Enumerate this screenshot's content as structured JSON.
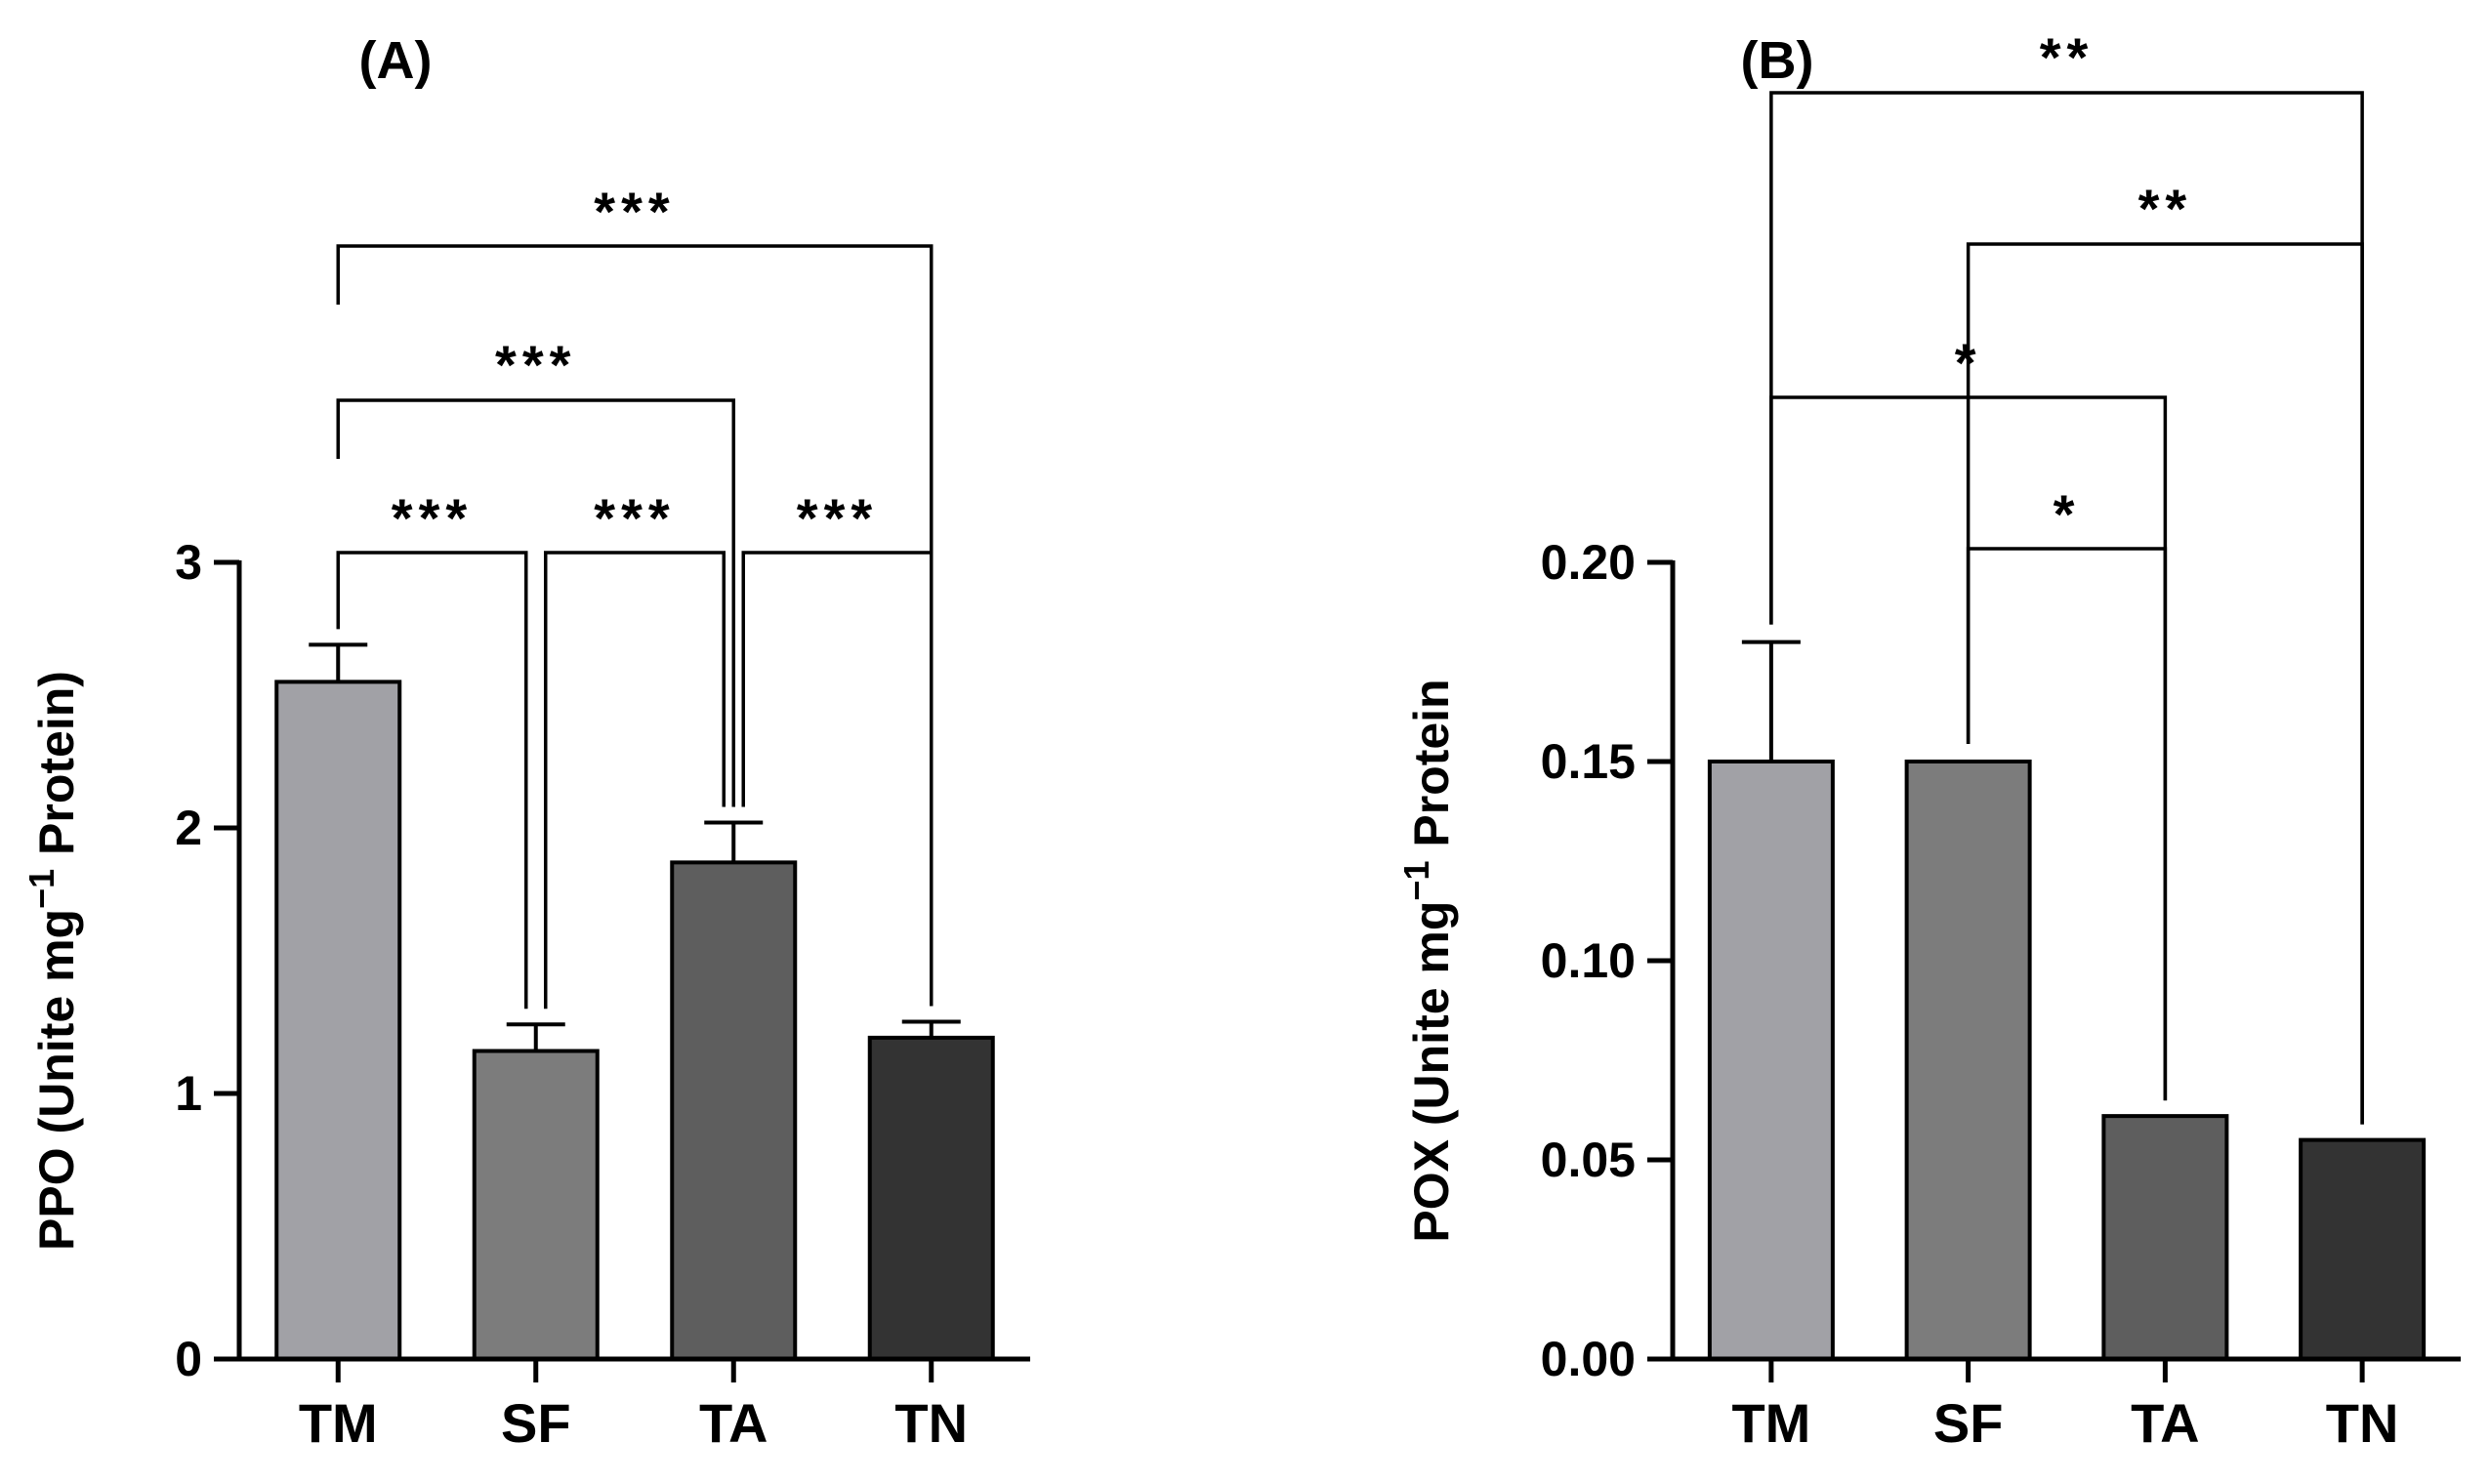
{
  "chart_data": [
    {
      "panel_label": "(A)",
      "type": "bar",
      "categories": [
        "TM",
        "SF",
        "TA",
        "TN"
      ],
      "values": [
        2.55,
        1.16,
        1.87,
        1.21
      ],
      "errors": [
        0.14,
        0.1,
        0.15,
        0.06
      ],
      "colors": [
        "#a1a1a6",
        "#7c7c7c",
        "#5e5e5e",
        "#333333"
      ],
      "ylabel_main": "PPO (Unite mg",
      "ylabel_sup": "−1",
      "ylabel_end": " Protein)",
      "ylim": [
        0,
        3
      ],
      "yticks": [
        0,
        1,
        2,
        3
      ],
      "ytick_labels": [
        "0",
        "1",
        "2",
        "3"
      ],
      "significance": [
        {
          "from": "TM",
          "to": "SF",
          "label": "***"
        },
        {
          "from": "SF",
          "to": "TA",
          "label": "***"
        },
        {
          "from": "TA",
          "to": "TN",
          "label": "***"
        },
        {
          "from": "TM",
          "to": "TA",
          "label": "***"
        },
        {
          "from": "TM",
          "to": "TN",
          "label": "***"
        }
      ]
    },
    {
      "panel_label": "(B)",
      "type": "bar",
      "categories": [
        "TM",
        "SF",
        "TA",
        "TN"
      ],
      "values": [
        0.15,
        0.15,
        0.061,
        0.055
      ],
      "errors": [
        0.03,
        0,
        0,
        0
      ],
      "colors": [
        "#a1a1a6",
        "#7c7c7c",
        "#5e5e5e",
        "#333333"
      ],
      "ylabel_main": "POX (Unite mg",
      "ylabel_sup": "−1",
      "ylabel_end": " Protein",
      "ylim": [
        0,
        0.2
      ],
      "yticks": [
        0,
        0.05,
        0.1,
        0.15,
        0.2
      ],
      "ytick_labels": [
        "0.00",
        "0.05",
        "0.10",
        "0.15",
        "0.20"
      ],
      "significance": [
        {
          "from": "SF",
          "to": "TA",
          "label": "*"
        },
        {
          "from": "TM",
          "to": "TA",
          "label": "*"
        },
        {
          "from": "SF",
          "to": "TN",
          "label": "**"
        },
        {
          "from": "TM",
          "to": "TN",
          "label": "**"
        }
      ]
    }
  ]
}
